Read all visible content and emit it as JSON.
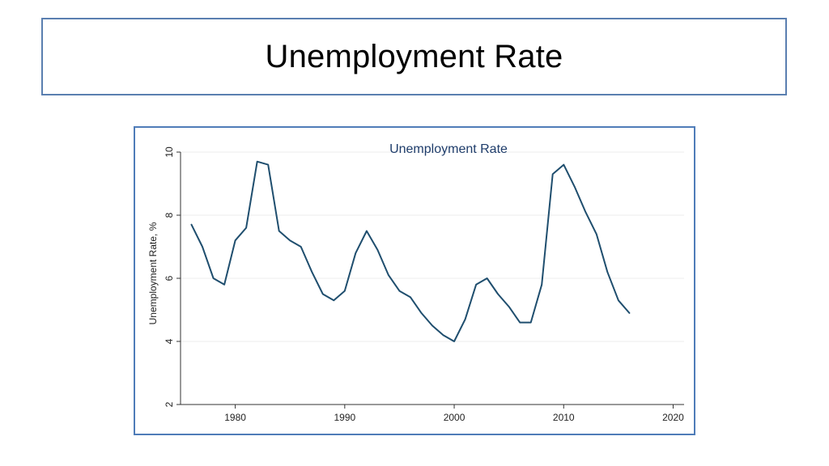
{
  "slide": {
    "title": "Unemployment Rate"
  },
  "chart_data": {
    "type": "line",
    "title": "Unemployment Rate",
    "xlabel": "",
    "ylabel": "Unemployment Rate, %",
    "xlim": [
      1975,
      2021
    ],
    "ylim": [
      2,
      10
    ],
    "xticks": [
      1980,
      1990,
      2000,
      2010,
      2020
    ],
    "yticks": [
      2,
      4,
      6,
      8,
      10
    ],
    "grid": true,
    "colors": {
      "line": "#1f4e6e",
      "title": "#1f3d6b",
      "grid": "#ececec",
      "axis": "#333333"
    },
    "series": [
      {
        "x": [
          1976,
          1977,
          1978,
          1979,
          1980,
          1981,
          1982,
          1983,
          1984,
          1985,
          1986,
          1987,
          1988,
          1989,
          1990,
          1991,
          1992,
          1993,
          1994,
          1995,
          1996,
          1997,
          1998,
          1999,
          2000,
          2001,
          2002,
          2003,
          2004,
          2005,
          2006,
          2007,
          2008,
          2009,
          2010,
          2011,
          2012,
          2013,
          2014,
          2015,
          2016
        ],
        "values": [
          7.7,
          7.0,
          6.0,
          5.8,
          7.2,
          7.6,
          9.7,
          9.6,
          7.5,
          7.2,
          7.0,
          6.2,
          5.5,
          5.3,
          5.6,
          6.8,
          7.5,
          6.9,
          6.1,
          5.6,
          5.4,
          4.9,
          4.5,
          4.2,
          4.0,
          4.7,
          5.8,
          6.0,
          5.5,
          5.1,
          4.6,
          4.6,
          5.8,
          9.3,
          9.6,
          8.9,
          8.1,
          7.4,
          6.2,
          5.3,
          4.9
        ]
      }
    ]
  }
}
